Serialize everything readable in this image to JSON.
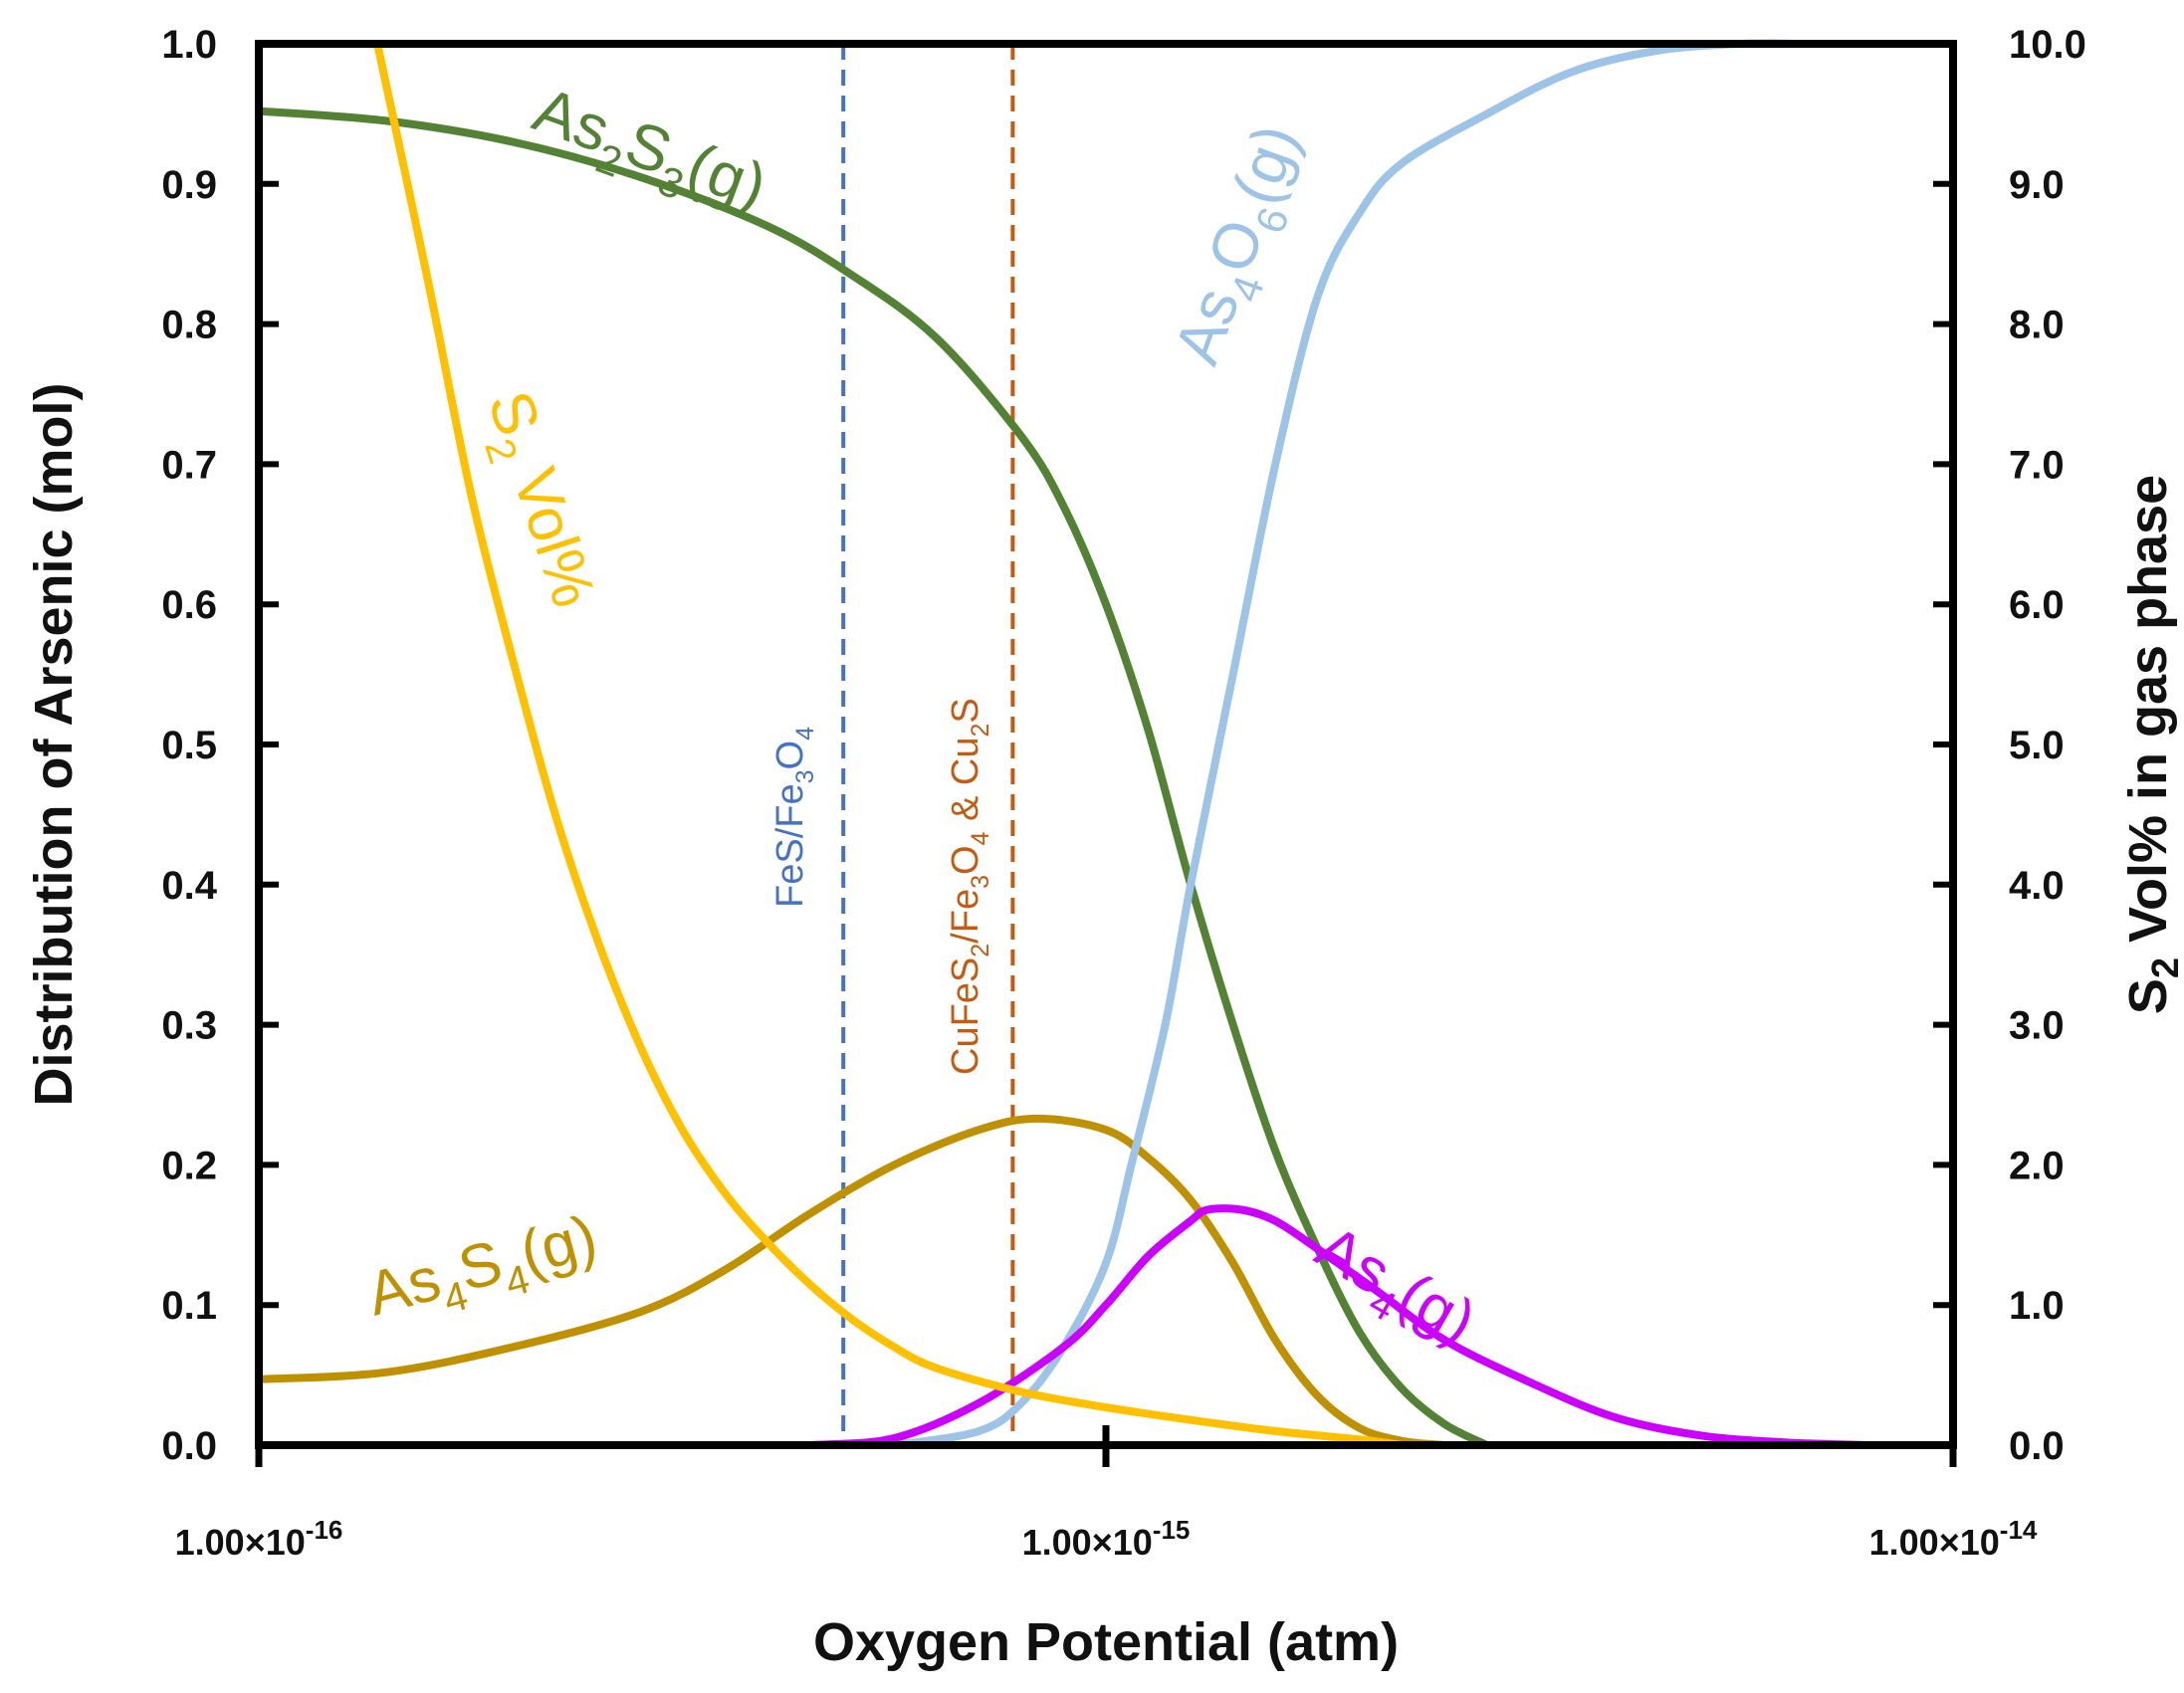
{
  "chart_data": {
    "type": "line",
    "title": "",
    "xlabel": "Oxygen Potential (atm)",
    "ylabel_left": "Distribution of Arsenic (mol)",
    "ylabel_right": "S2 Vol% in gas phase",
    "x_scale": "log10",
    "xlim_exp": [
      -16,
      -14
    ],
    "ylim_left": [
      0,
      1.0
    ],
    "ylim_right": [
      0,
      10.0
    ],
    "xticks": [
      {
        "exp": -16,
        "mantissa": "1.00×10",
        "power": "-16"
      },
      {
        "exp": -15,
        "mantissa": "1.00×10",
        "power": "-15"
      },
      {
        "exp": -14,
        "mantissa": "1.00×10",
        "power": "-14"
      }
    ],
    "yticks_left": [
      "0.0",
      "0.1",
      "0.2",
      "0.3",
      "0.4",
      "0.5",
      "0.6",
      "0.7",
      "0.8",
      "0.9",
      "1.0"
    ],
    "yticks_right": [
      "0.0",
      "1.0",
      "2.0",
      "3.0",
      "4.0",
      "5.0",
      "6.0",
      "7.0",
      "8.0",
      "9.0",
      "10.0"
    ],
    "series": [
      {
        "name": "As2S3(g)",
        "axis": "left",
        "color": "#548235",
        "points": [
          [
            -16,
            0.952
          ],
          [
            -15.85,
            0.945
          ],
          [
            -15.7,
            0.93
          ],
          [
            -15.55,
            0.905
          ],
          [
            -15.4,
            0.87
          ],
          [
            -15.3,
            0.835
          ],
          [
            -15.2,
            0.79
          ],
          [
            -15.1,
            0.72
          ],
          [
            -15.05,
            0.67
          ],
          [
            -15.0,
            0.6
          ],
          [
            -14.95,
            0.51
          ],
          [
            -14.9,
            0.4
          ],
          [
            -14.85,
            0.3
          ],
          [
            -14.8,
            0.21
          ],
          [
            -14.75,
            0.14
          ],
          [
            -14.7,
            0.08
          ],
          [
            -14.65,
            0.04
          ],
          [
            -14.6,
            0.015
          ],
          [
            -14.55,
            0.0
          ]
        ]
      },
      {
        "name": "As4S4(g)",
        "axis": "left",
        "color": "#BF9000",
        "points": [
          [
            -16,
            0.047
          ],
          [
            -15.85,
            0.052
          ],
          [
            -15.7,
            0.07
          ],
          [
            -15.55,
            0.095
          ],
          [
            -15.45,
            0.125
          ],
          [
            -15.35,
            0.165
          ],
          [
            -15.25,
            0.2
          ],
          [
            -15.15,
            0.225
          ],
          [
            -15.08,
            0.233
          ],
          [
            -15.0,
            0.225
          ],
          [
            -14.95,
            0.205
          ],
          [
            -14.9,
            0.175
          ],
          [
            -14.85,
            0.13
          ],
          [
            -14.8,
            0.075
          ],
          [
            -14.75,
            0.035
          ],
          [
            -14.7,
            0.012
          ],
          [
            -14.65,
            0.003
          ],
          [
            -14.6,
            0.0
          ]
        ]
      },
      {
        "name": "As4O6(g)",
        "axis": "left",
        "color": "#9DC3E6",
        "points": [
          [
            -15.25,
            0.0
          ],
          [
            -15.15,
            0.01
          ],
          [
            -15.1,
            0.03
          ],
          [
            -15.05,
            0.07
          ],
          [
            -15.0,
            0.13
          ],
          [
            -14.97,
            0.2
          ],
          [
            -14.93,
            0.3
          ],
          [
            -14.9,
            0.4
          ],
          [
            -14.85,
            0.55
          ],
          [
            -14.8,
            0.7
          ],
          [
            -14.75,
            0.82
          ],
          [
            -14.7,
            0.88
          ],
          [
            -14.65,
            0.915
          ],
          [
            -14.55,
            0.95
          ],
          [
            -14.45,
            0.98
          ],
          [
            -14.35,
            0.995
          ],
          [
            -14.25,
            1.0
          ],
          [
            -14.18,
            1.0
          ]
        ]
      },
      {
        "name": "As4(g)",
        "axis": "left",
        "color": "#CC00FF",
        "points": [
          [
            -15.35,
            0.0
          ],
          [
            -15.25,
            0.005
          ],
          [
            -15.15,
            0.03
          ],
          [
            -15.05,
            0.07
          ],
          [
            -15.0,
            0.1
          ],
          [
            -14.95,
            0.135
          ],
          [
            -14.9,
            0.16
          ],
          [
            -14.88,
            0.168
          ],
          [
            -14.84,
            0.168
          ],
          [
            -14.8,
            0.16
          ],
          [
            -14.75,
            0.14
          ],
          [
            -14.68,
            0.11
          ],
          [
            -14.6,
            0.075
          ],
          [
            -14.5,
            0.045
          ],
          [
            -14.4,
            0.02
          ],
          [
            -14.3,
            0.007
          ],
          [
            -14.2,
            0.002
          ],
          [
            -14.1,
            0.0
          ]
        ]
      },
      {
        "name": "S2 Vol%",
        "axis": "right",
        "color": "#FFC000",
        "points": [
          [
            -15.86,
            10.0
          ],
          [
            -15.8,
            8.3
          ],
          [
            -15.75,
            6.8
          ],
          [
            -15.7,
            5.6
          ],
          [
            -15.65,
            4.5
          ],
          [
            -15.6,
            3.6
          ],
          [
            -15.55,
            2.85
          ],
          [
            -15.5,
            2.25
          ],
          [
            -15.45,
            1.8
          ],
          [
            -15.4,
            1.45
          ],
          [
            -15.35,
            1.15
          ],
          [
            -15.3,
            0.9
          ],
          [
            -15.25,
            0.7
          ],
          [
            -15.2,
            0.55
          ],
          [
            -15.1,
            0.38
          ],
          [
            -15.0,
            0.27
          ],
          [
            -14.9,
            0.18
          ],
          [
            -14.8,
            0.1
          ],
          [
            -14.7,
            0.04
          ],
          [
            -14.65,
            0.0
          ]
        ]
      }
    ],
    "reference_lines": [
      {
        "name": "FeS/Fe3O4",
        "exp": -15.31,
        "color": "#4472C4"
      },
      {
        "name": "CuFeS2/Fe3O4 & Cu2S",
        "exp": -15.11,
        "color": "#C55A11"
      }
    ],
    "annotations": [
      {
        "text": "As2S3(g)",
        "base": "As",
        "sub1": "2",
        "mid": "S",
        "sub2": "3",
        "tail": "(g)",
        "color": "#548235"
      },
      {
        "text": "As4S4(g)",
        "base": "As",
        "sub1": "4",
        "mid": "S",
        "sub2": "4",
        "tail": "(g)",
        "color": "#BF9000"
      },
      {
        "text": "As4O6(g)",
        "base": "As",
        "sub1": "4",
        "mid": "O",
        "sub2": "6",
        "tail": "(g)",
        "color": "#9DC3E6"
      },
      {
        "text": "As4(g)",
        "base": "As",
        "sub1": "4",
        "tail": "(g)",
        "color": "#CC00FF"
      },
      {
        "text": "S2 Vol%",
        "base": "S",
        "sub1": "2",
        "tail": " Vol%",
        "color": "#FFC000"
      }
    ],
    "ref_labels": [
      {
        "text": "FeS/Fe3O4",
        "color": "#4472C4"
      },
      {
        "text": "CuFeS2/Fe3O4 & Cu2S",
        "color": "#C55A11"
      }
    ]
  }
}
